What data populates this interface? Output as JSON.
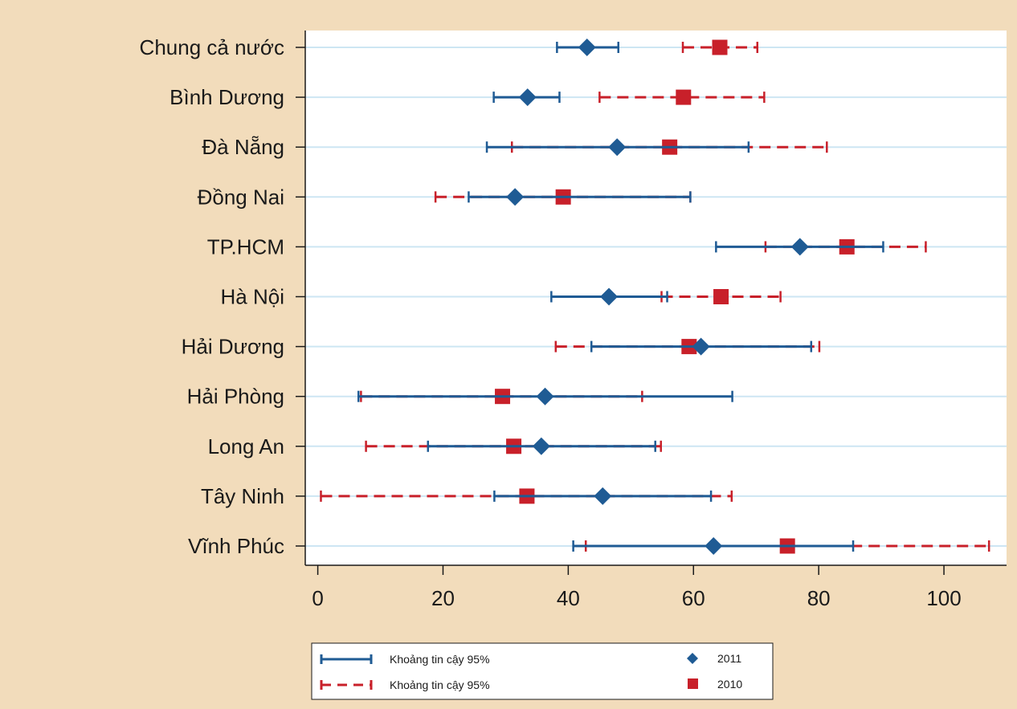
{
  "chart_data": {
    "type": "scatter",
    "title": "",
    "xlabel": "",
    "ylabel": "",
    "xlim": [
      -2,
      110
    ],
    "x_ticks": [
      0,
      20,
      40,
      60,
      80,
      100
    ],
    "grid": "horizontal",
    "legend_position": "bottom",
    "colors": {
      "2011": "#1f5b94",
      "2010": "#c8202a",
      "grid": "#cde6f3",
      "background": "#f2dcbb"
    },
    "categories": [
      "Chung cả nước",
      "Bình Dương",
      "Đà Nẵng",
      "Đồng Nai",
      "TP.HCM",
      "Hà Nội",
      "Hải Dương",
      "Hải Phòng",
      "Long An",
      "Tây Ninh",
      "Vĩnh Phúc"
    ],
    "series": [
      {
        "name": "2011",
        "marker": "diamond",
        "values": [
          43,
          33.5,
          47.8,
          31.5,
          77,
          46.5,
          61.2,
          36.3,
          35.7,
          45.5,
          63.2
        ],
        "ci_low": [
          38.2,
          28.1,
          27,
          24.1,
          63.6,
          37.3,
          43.7,
          6.5,
          17.6,
          28.2,
          40.8
        ],
        "ci_high": [
          48,
          38.6,
          68.8,
          59.5,
          90.3,
          55.8,
          78.8,
          66.2,
          53.9,
          62.8,
          85.5
        ]
      },
      {
        "name": "2010",
        "marker": "square",
        "values": [
          64.2,
          58.4,
          56.2,
          39.2,
          84.5,
          64.4,
          59.3,
          29.5,
          31.3,
          33.4,
          75
        ],
        "ci_low": [
          58.3,
          45,
          31,
          18.8,
          71.5,
          54.9,
          38,
          6.9,
          7.7,
          0.5,
          42.8
        ],
        "ci_high": [
          70.2,
          71.3,
          81.3,
          59.5,
          97.1,
          73.9,
          80.1,
          51.8,
          54.8,
          66.1,
          107.2
        ]
      }
    ],
    "legend": [
      {
        "key": "ci_2011",
        "label": "Khoảng tin cậy 95%"
      },
      {
        "key": "ci_2010",
        "label": "Khoảng tin cậy 95%"
      },
      {
        "key": "point_2011",
        "label": "2011"
      },
      {
        "key": "point_2010",
        "label": "2010"
      }
    ]
  }
}
